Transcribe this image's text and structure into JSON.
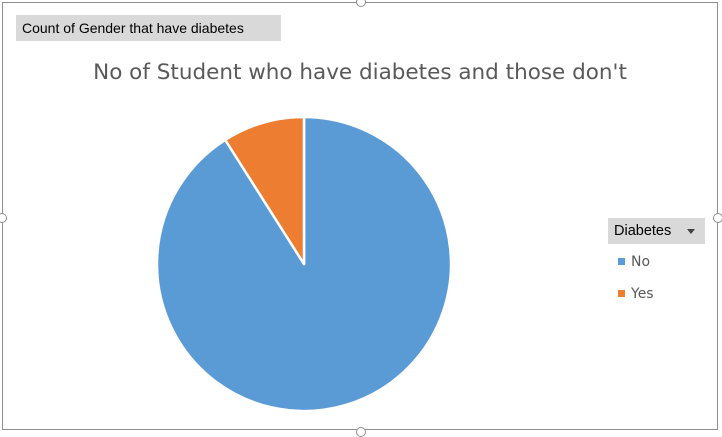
{
  "pivot_field_button": "Count of Gender that have diabetes",
  "legend": {
    "field_button": "Diabetes",
    "items": [
      {
        "label": "No",
        "color": "#5b9bd5"
      },
      {
        "label": "Yes",
        "color": "#ed7d31"
      }
    ]
  },
  "chart_data": {
    "type": "pie",
    "title": "No of Student who have diabetes and those don't",
    "legend_position": "right",
    "slices": [
      {
        "label": "No",
        "value": 91,
        "color": "#5b9bd5"
      },
      {
        "label": "Yes",
        "value": 9,
        "color": "#ed7d31"
      }
    ]
  }
}
